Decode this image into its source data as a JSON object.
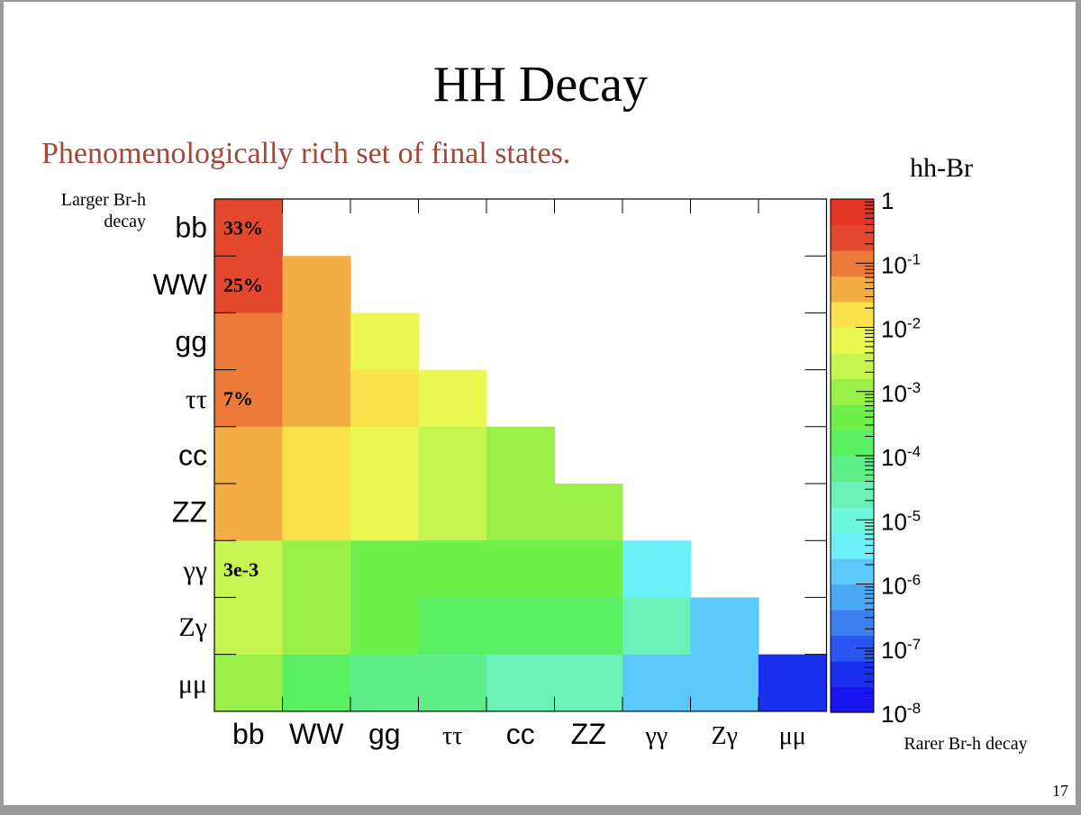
{
  "slide": {
    "title": "HH Decay",
    "subtitle": "Phenomenologically rich set of final states.",
    "page_number": "17"
  },
  "chart_data": {
    "type": "heatmap",
    "title": "",
    "ylabel": "Larger Br-h decay",
    "xlabel": "Rarer Br-h decay",
    "colorbar_label": "hh-Br",
    "colorbar_ticks": [
      "1",
      "10-1",
      "10-2",
      "10-3",
      "10-4",
      "10-5",
      "10-6",
      "10-7",
      "10-8"
    ],
    "colorbar_scale": "log",
    "colorbar_range": [
      1e-08,
      1
    ],
    "x_categories": [
      "bb",
      "WW",
      "gg",
      "ττ",
      "cc",
      "ZZ",
      "γγ",
      "Zγ",
      "μμ"
    ],
    "y_categories": [
      "bb",
      "WW",
      "gg",
      "ττ",
      "cc",
      "ZZ",
      "γγ",
      "Zγ",
      "μμ"
    ],
    "values": [
      [
        0.33,
        null,
        null,
        null,
        null,
        null,
        null,
        null,
        null
      ],
      [
        0.25,
        0.046,
        null,
        null,
        null,
        null,
        null,
        null,
        null
      ],
      [
        0.076,
        0.028,
        0.0066,
        null,
        null,
        null,
        null,
        null,
        null
      ],
      [
        0.07,
        0.026,
        0.012,
        0.004,
        null,
        null,
        null,
        null,
        null
      ],
      [
        0.034,
        0.012,
        0.0055,
        0.0025,
        0.0008,
        null,
        null,
        null,
        null
      ],
      [
        0.031,
        0.01,
        0.005,
        0.0022,
        0.00072,
        0.00065,
        null,
        null,
        null
      ],
      [
        0.003,
        0.0008,
        0.0004,
        0.00035,
        0.0003,
        0.00028,
        5.2e-06,
        null,
        null
      ],
      [
        0.0019,
        0.0007,
        0.00033,
        0.00015,
        0.00011,
        0.00012,
        2.1e-05,
        2.3e-06,
        null
      ],
      [
        0.00064,
        0.00011,
        5.5e-05,
        4.5e-05,
        2.2e-05,
        2.3e-05,
        2.2e-06,
        1.1e-06,
        4.7e-08
      ]
    ],
    "annotations": [
      {
        "row": 0,
        "col": 0,
        "text": "33%"
      },
      {
        "row": 1,
        "col": 0,
        "text": "25%"
      },
      {
        "row": 3,
        "col": 0,
        "text": "7%"
      },
      {
        "row": 6,
        "col": 0,
        "text": "3e-3"
      }
    ]
  }
}
